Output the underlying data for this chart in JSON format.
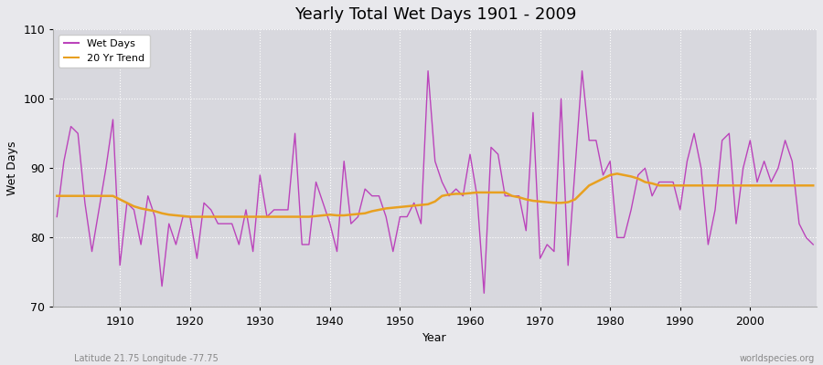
{
  "title": "Yearly Total Wet Days 1901 - 2009",
  "xlabel": "Year",
  "ylabel": "Wet Days",
  "footnote_left": "Latitude 21.75 Longitude -77.75",
  "footnote_right": "worldspecies.org",
  "ylim": [
    70,
    110
  ],
  "yticks": [
    70,
    80,
    90,
    100,
    110
  ],
  "line_color": "#bb44bb",
  "trend_color": "#e8a020",
  "bg_color": "#e8e8ec",
  "plot_bg_color": "#d8d8de",
  "wet_days": [
    83,
    91,
    96,
    95,
    85,
    78,
    84,
    90,
    97,
    76,
    85,
    84,
    79,
    86,
    83,
    73,
    82,
    79,
    83,
    83,
    77,
    85,
    84,
    82,
    82,
    82,
    79,
    84,
    78,
    89,
    83,
    84,
    84,
    84,
    95,
    79,
    79,
    88,
    85,
    82,
    78,
    91,
    82,
    83,
    87,
    86,
    86,
    83,
    78,
    83,
    83,
    85,
    82,
    104,
    91,
    88,
    86,
    87,
    86,
    92,
    86,
    72,
    93,
    92,
    86,
    86,
    86,
    81,
    98,
    77,
    79,
    78,
    100,
    76,
    90,
    104,
    94,
    94,
    89,
    91,
    80,
    80,
    84,
    89,
    90,
    86,
    88,
    88,
    88,
    84,
    91,
    95,
    90,
    79,
    84,
    94,
    95,
    82,
    90,
    94,
    88,
    91,
    88,
    90,
    94,
    91,
    82,
    80,
    79
  ],
  "trend_20yr": [
    86.0,
    86.0,
    86.0,
    86.0,
    86.0,
    86.0,
    86.0,
    86.0,
    86.0,
    85.5,
    85.0,
    84.5,
    84.2,
    84.0,
    83.8,
    83.5,
    83.3,
    83.2,
    83.1,
    83.0,
    83.0,
    83.0,
    83.0,
    83.0,
    83.0,
    83.0,
    83.0,
    83.0,
    83.0,
    83.0,
    83.0,
    83.0,
    83.0,
    83.0,
    83.0,
    83.0,
    83.0,
    83.1,
    83.2,
    83.3,
    83.2,
    83.2,
    83.3,
    83.4,
    83.5,
    83.8,
    84.0,
    84.2,
    84.3,
    84.4,
    84.5,
    84.6,
    84.7,
    84.8,
    85.2,
    86.0,
    86.2,
    86.3,
    86.3,
    86.4,
    86.5,
    86.5,
    86.5,
    86.5,
    86.5,
    86.0,
    85.8,
    85.5,
    85.3,
    85.2,
    85.1,
    85.0,
    85.0,
    85.1,
    85.5,
    86.5,
    87.5,
    88.0,
    88.5,
    89.0,
    89.2,
    89.0,
    88.8,
    88.5,
    88.0,
    87.8,
    87.5,
    87.5,
    87.5,
    87.5,
    87.5,
    87.5,
    87.5,
    87.5,
    87.5,
    87.5,
    87.5,
    87.5,
    87.5,
    87.5,
    87.5,
    87.5,
    87.5,
    87.5,
    87.5,
    87.5,
    87.5,
    87.5,
    87.5
  ],
  "start_year": 1901
}
